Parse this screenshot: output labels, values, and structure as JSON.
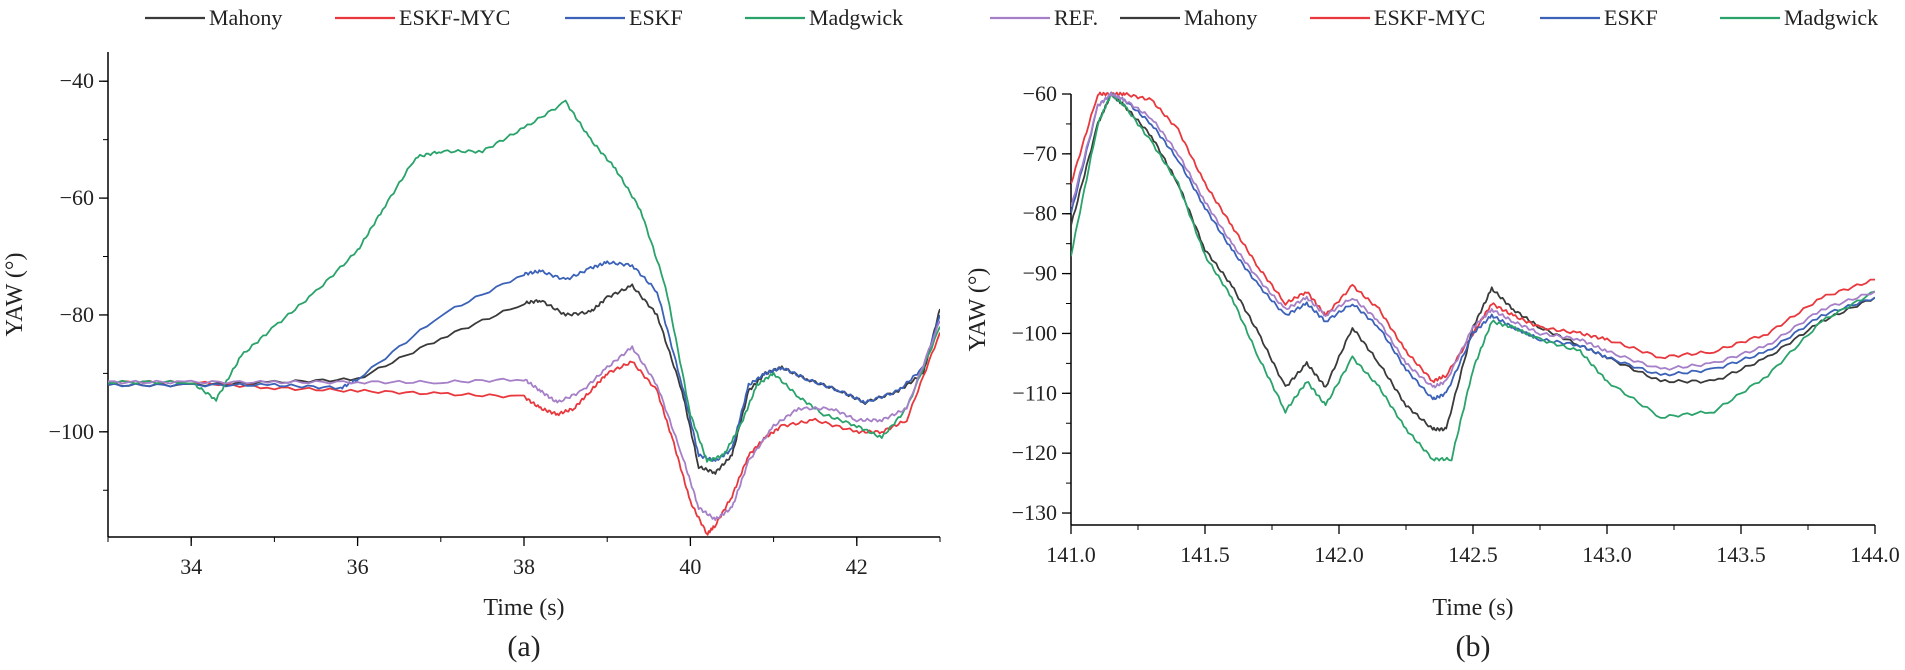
{
  "legend_order": [
    "Mahony",
    "ESKF-MYC",
    "ESKF",
    "Madgwick",
    "REF."
  ],
  "colors": {
    "Mahony": "#3a3a3a",
    "ESKF-MYC": "#e8383d",
    "ESKF": "#3b62b8",
    "Madgwick": "#2aa36b",
    "REF.": "#a57fc7"
  },
  "chart_data": [
    {
      "type": "line",
      "panel_id": "a",
      "title": "",
      "xlabel": "Time (s)",
      "ylabel": "YAW (°)",
      "xlim": [
        33,
        43
      ],
      "ylim": [
        -118,
        -35
      ],
      "xticks": [
        34,
        36,
        38,
        40,
        42
      ],
      "yticks": [
        -40,
        -60,
        -80,
        -100
      ],
      "xtick_labels": [
        "34",
        "36",
        "38",
        "40",
        "42"
      ],
      "ytick_labels": [
        "−40",
        "−60",
        "−80",
        "−100"
      ],
      "legend": [
        "Mahony",
        "ESKF-MYC",
        "ESKF",
        "Madgwick",
        "REF."
      ],
      "series": [
        {
          "name": "Mahony",
          "x": [
            33,
            34,
            35,
            36,
            37,
            38,
            38.2,
            38.5,
            38.8,
            39.0,
            39.3,
            39.6,
            39.9,
            40.1,
            40.3,
            40.5,
            40.7,
            40.9,
            41.1,
            41.4,
            41.8,
            42.1,
            42.5,
            42.8,
            43.0
          ],
          "y": [
            -92,
            -92,
            -91.5,
            -91,
            -84,
            -78,
            -77.5,
            -80,
            -79.5,
            -77,
            -75,
            -80,
            -93,
            -106,
            -107,
            -104,
            -93,
            -90,
            -89,
            -91,
            -93,
            -95,
            -93,
            -90,
            -79
          ]
        },
        {
          "name": "ESKF-MYC",
          "x": [
            33,
            34,
            35,
            36,
            37,
            38,
            38.2,
            38.4,
            38.6,
            38.8,
            39.0,
            39.3,
            39.6,
            39.8,
            40.0,
            40.2,
            40.3,
            40.5,
            40.7,
            40.9,
            41.1,
            41.5,
            42.0,
            42.3,
            42.6,
            43.0
          ],
          "y": [
            -91.5,
            -91.5,
            -92.5,
            -93,
            -93.5,
            -94,
            -96,
            -97,
            -96,
            -93,
            -90,
            -88,
            -93,
            -102,
            -112,
            -117.5,
            -116,
            -111,
            -104,
            -101,
            -99,
            -98,
            -100,
            -100,
            -98,
            -83
          ]
        },
        {
          "name": "ESKF",
          "x": [
            33,
            34,
            35,
            35.8,
            36,
            37,
            38,
            38.2,
            38.5,
            38.8,
            39.0,
            39.3,
            39.6,
            39.9,
            40.1,
            40.3,
            40.5,
            40.7,
            40.9,
            41.1,
            41.4,
            41.8,
            42.1,
            42.5,
            42.8,
            43.0
          ],
          "y": [
            -92,
            -92,
            -92,
            -92.5,
            -91,
            -80,
            -73,
            -72.5,
            -74,
            -72,
            -71,
            -71.5,
            -76,
            -92,
            -104,
            -105,
            -103,
            -92,
            -90,
            -89,
            -91,
            -93,
            -95,
            -93,
            -89,
            -80
          ]
        },
        {
          "name": "Madgwick",
          "x": [
            33,
            34.0,
            34.3,
            34.6,
            35.0,
            35.5,
            36.0,
            36.3,
            36.7,
            37.0,
            37.5,
            38.0,
            38.5,
            38.8,
            39.1,
            39.4,
            39.7,
            40.0,
            40.2,
            40.4,
            40.6,
            40.8,
            41.0,
            41.3,
            41.6,
            42.0,
            42.3,
            42.6,
            43.0
          ],
          "y": [
            -91.5,
            -91.5,
            -94.5,
            -87,
            -82,
            -76,
            -69,
            -62,
            -53,
            -52,
            -52,
            -48,
            -43.5,
            -50,
            -55,
            -62,
            -75,
            -97,
            -105,
            -104,
            -99,
            -92,
            -90,
            -94,
            -97,
            -99,
            -101,
            -96,
            -82
          ]
        },
        {
          "name": "REF.",
          "x": [
            33,
            34,
            35,
            36,
            37,
            38,
            38.2,
            38.4,
            38.7,
            39.0,
            39.3,
            39.6,
            39.9,
            40.1,
            40.3,
            40.5,
            40.7,
            41.0,
            41.3,
            41.7,
            42.0,
            42.3,
            42.6,
            43.0
          ],
          "y": [
            -91.5,
            -91.5,
            -91.5,
            -91.5,
            -91.5,
            -91,
            -93,
            -95,
            -93,
            -89,
            -85.5,
            -92,
            -104,
            -113,
            -115,
            -113,
            -105,
            -99,
            -96,
            -96,
            -98,
            -98,
            -96,
            -81
          ]
        }
      ]
    },
    {
      "type": "line",
      "panel_id": "b",
      "title": "",
      "xlabel": "Time (s)",
      "ylabel": "YAW (°)",
      "xlim": [
        141.0,
        144.0
      ],
      "ylim": [
        -132,
        -60
      ],
      "xticks": [
        141.0,
        141.5,
        142.0,
        142.5,
        143.0,
        143.5,
        144.0
      ],
      "yticks": [
        -60,
        -70,
        -80,
        -90,
        -100,
        -110,
        -120,
        -130
      ],
      "xtick_labels": [
        "141.0",
        "141.5",
        "142.0",
        "142.5",
        "143.0",
        "143.5",
        "144.0"
      ],
      "ytick_labels": [
        "−60",
        "−70",
        "−80",
        "−90",
        "−100",
        "−110",
        "−120",
        "−130"
      ],
      "legend": [
        "Mahony",
        "ESKF-MYC",
        "ESKF",
        "Madgwick",
        "REF."
      ],
      "series": [
        {
          "name": "Mahony",
          "x": [
            141.0,
            141.1,
            141.15,
            141.2,
            141.3,
            141.4,
            141.5,
            141.6,
            141.7,
            141.8,
            141.88,
            141.95,
            142.05,
            142.15,
            142.25,
            142.35,
            142.4,
            142.5,
            142.57,
            142.65,
            142.75,
            142.9,
            143.0,
            143.2,
            143.4,
            143.6,
            143.8,
            144.0
          ],
          "y": [
            -82,
            -65,
            -60,
            -62,
            -67,
            -75,
            -86,
            -92,
            -100,
            -109,
            -105,
            -109,
            -99,
            -105,
            -112,
            -116,
            -116,
            -99,
            -92.5,
            -96,
            -99,
            -102,
            -104,
            -108,
            -108,
            -104,
            -98,
            -94
          ]
        },
        {
          "name": "ESKF-MYC",
          "x": [
            141.0,
            141.1,
            141.15,
            141.2,
            141.3,
            141.4,
            141.5,
            141.6,
            141.7,
            141.8,
            141.88,
            141.95,
            142.05,
            142.15,
            142.25,
            142.35,
            142.4,
            142.5,
            142.57,
            142.65,
            142.75,
            142.9,
            143.0,
            143.2,
            143.4,
            143.6,
            143.8,
            144.0
          ],
          "y": [
            -75,
            -60,
            -60,
            -60,
            -61,
            -66,
            -75,
            -82,
            -89,
            -95,
            -93,
            -97,
            -92,
            -96,
            -103,
            -108,
            -107,
            -100,
            -95,
            -97,
            -99,
            -100,
            -101,
            -104,
            -103,
            -100,
            -94,
            -91
          ]
        },
        {
          "name": "ESKF",
          "x": [
            141.0,
            141.1,
            141.15,
            141.2,
            141.3,
            141.4,
            141.5,
            141.6,
            141.7,
            141.8,
            141.88,
            141.95,
            142.05,
            142.15,
            142.25,
            142.35,
            142.4,
            142.5,
            142.57,
            142.65,
            142.75,
            142.9,
            143.0,
            143.2,
            143.4,
            143.6,
            143.8,
            144.0
          ],
          "y": [
            -80,
            -62,
            -60,
            -61,
            -65,
            -71,
            -79,
            -86,
            -92,
            -97,
            -95,
            -98,
            -95,
            -99,
            -106,
            -111,
            -110,
            -100,
            -97,
            -99,
            -101,
            -102,
            -104,
            -107,
            -106,
            -103,
            -97,
            -94
          ]
        },
        {
          "name": "Madgwick",
          "x": [
            141.0,
            141.1,
            141.15,
            141.2,
            141.3,
            141.4,
            141.5,
            141.6,
            141.7,
            141.8,
            141.88,
            141.95,
            142.05,
            142.15,
            142.25,
            142.35,
            142.42,
            142.5,
            142.57,
            142.65,
            142.75,
            142.9,
            143.0,
            143.2,
            143.4,
            143.6,
            143.8,
            144.0
          ],
          "y": [
            -87,
            -65,
            -60,
            -62,
            -68,
            -75,
            -87,
            -94,
            -104,
            -113,
            -108,
            -112,
            -104,
            -109,
            -116,
            -121,
            -121,
            -106,
            -98,
            -99,
            -101,
            -103,
            -108,
            -114,
            -113,
            -107,
            -98,
            -93
          ]
        },
        {
          "name": "REF.",
          "x": [
            141.0,
            141.1,
            141.15,
            141.2,
            141.3,
            141.4,
            141.5,
            141.6,
            141.7,
            141.8,
            141.88,
            141.95,
            142.05,
            142.15,
            142.25,
            142.35,
            142.4,
            142.5,
            142.57,
            142.65,
            142.75,
            142.9,
            143.0,
            143.2,
            143.4,
            143.6,
            143.8,
            144.0
          ],
          "y": [
            -79,
            -62,
            -60,
            -61,
            -64,
            -70,
            -78,
            -85,
            -91,
            -96,
            -94,
            -97,
            -94,
            -98,
            -105,
            -109,
            -108,
            -99,
            -96,
            -98,
            -100,
            -101,
            -103,
            -106,
            -105,
            -102,
            -96,
            -93
          ]
        }
      ]
    }
  ],
  "panel_labels": [
    "(a)",
    "(b)"
  ]
}
